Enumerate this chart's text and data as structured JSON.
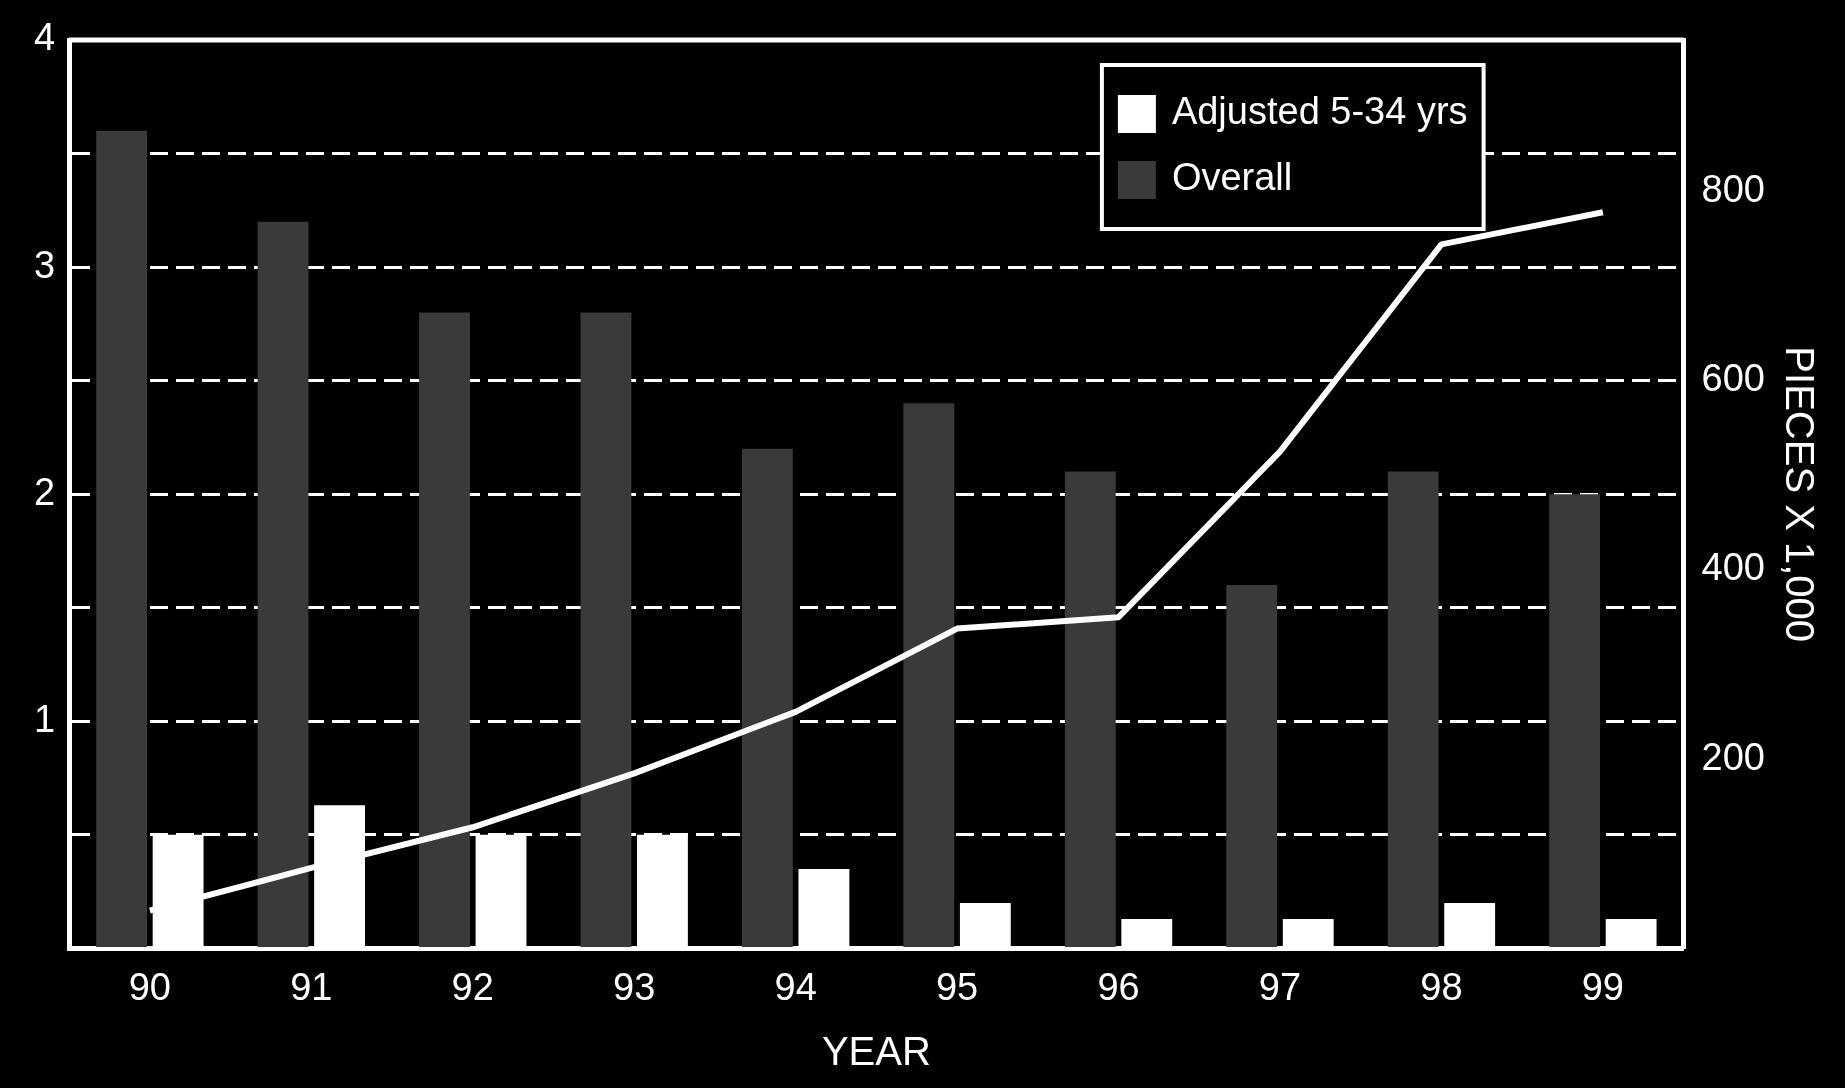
{
  "chart_data": {
    "type": "bar",
    "xlabel": "YEAR",
    "y2label": "PIECES X 1,000",
    "categories": [
      "90",
      "91",
      "92",
      "93",
      "94",
      "95",
      "96",
      "97",
      "98",
      "99"
    ],
    "series": [
      {
        "name": "Overall",
        "color": "#3a3a3a",
        "values": [
          3.6,
          3.2,
          2.8,
          2.8,
          2.2,
          2.4,
          2.1,
          1.6,
          2.1,
          2.0
        ]
      },
      {
        "name": "Adjusted 5-34 yrs",
        "color": "#ffffff",
        "values": [
          0.5,
          0.63,
          0.5,
          0.5,
          0.35,
          0.2,
          0.13,
          0.13,
          0.2,
          0.13
        ]
      },
      {
        "type": "line",
        "axis": "y2",
        "color": "#ffffff",
        "values": [
          40,
          85,
          128,
          185,
          250,
          338,
          350,
          525,
          744,
          778
        ]
      }
    ],
    "ylim": [
      0,
      4
    ],
    "yticks": [
      {
        "value": 0,
        "label": null
      },
      {
        "value": 0.5,
        "label": null
      },
      1,
      {
        "value": 1.5,
        "label": null
      },
      2,
      {
        "value": 2.5,
        "label": null
      },
      3,
      {
        "value": 3.5,
        "label": null
      },
      4
    ],
    "y2lim": [
      0,
      960
    ],
    "y2ticks": [
      200,
      400,
      600,
      800
    ],
    "grid": "y",
    "legend": "top right",
    "marker": "none"
  }
}
